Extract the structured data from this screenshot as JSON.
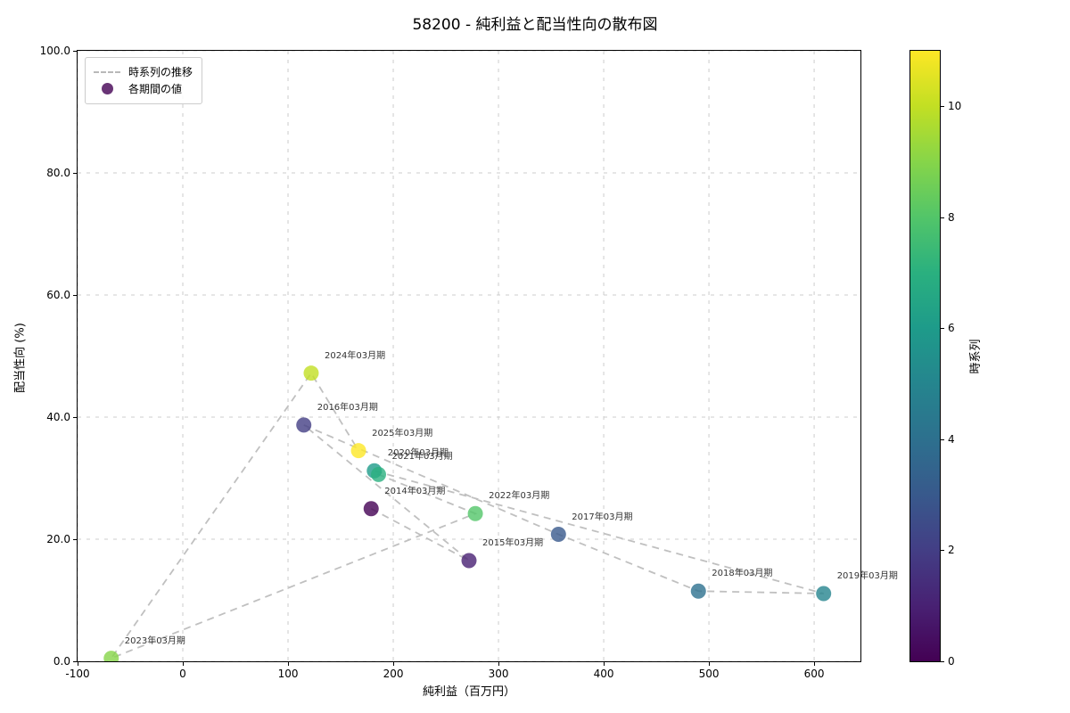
{
  "chart_data": {
    "type": "scatter",
    "title": "58200 - 純利益と配当性向の散布図",
    "xlabel": "純利益（百万円）",
    "ylabel": "配当性向 (%)",
    "xlim": [
      -100,
      644
    ],
    "ylim": [
      0,
      100
    ],
    "xticks": [
      -100,
      0,
      100,
      200,
      300,
      400,
      500,
      600
    ],
    "yticks": [
      0,
      20,
      40,
      60,
      80,
      100
    ],
    "ytick_labels": [
      "0.0",
      "20.0",
      "40.0",
      "60.0",
      "80.0",
      "100.0"
    ],
    "grid": true,
    "grid_color": "#cccccc",
    "line_color": "#c0c0c0",
    "marker_alpha": 0.8,
    "legend": {
      "position": "upper-left",
      "items": [
        {
          "type": "dashed-line",
          "label": "時系列の推移",
          "color": "#b9b9b9"
        },
        {
          "type": "dot",
          "label": "各期間の値",
          "color": "#440154"
        }
      ]
    },
    "points": [
      {
        "label": "2014年03月期",
        "x": 179,
        "y": 25.0,
        "t": 0,
        "color": "#440154"
      },
      {
        "label": "2015年03月期",
        "x": 272,
        "y": 16.5,
        "t": 1,
        "color": "#482173"
      },
      {
        "label": "2016年03月期",
        "x": 115,
        "y": 38.7,
        "t": 2,
        "color": "#433e85"
      },
      {
        "label": "2017年03月期",
        "x": 357,
        "y": 20.8,
        "t": 3,
        "color": "#38598c"
      },
      {
        "label": "2018年03月期",
        "x": 490,
        "y": 11.5,
        "t": 4,
        "color": "#2d708e"
      },
      {
        "label": "2019年03月期",
        "x": 609,
        "y": 11.1,
        "t": 5,
        "color": "#25858e"
      },
      {
        "label": "2020年03月期",
        "x": 182,
        "y": 31.2,
        "t": 6,
        "color": "#1e9b8a"
      },
      {
        "label": "2021年03月期",
        "x": 186,
        "y": 30.6,
        "t": 7,
        "color": "#2ab07f"
      },
      {
        "label": "2022年03月期",
        "x": 278,
        "y": 24.2,
        "t": 8,
        "color": "#52c569"
      },
      {
        "label": "2023年03月期",
        "x": -68,
        "y": 0.5,
        "t": 9,
        "color": "#86d549"
      },
      {
        "label": "2024年03月期",
        "x": 122,
        "y": 47.2,
        "t": 10,
        "color": "#c2df23"
      },
      {
        "label": "2025年03月期",
        "x": 167,
        "y": 34.5,
        "t": 11,
        "color": "#fde725"
      }
    ],
    "colorbar": {
      "label": "時系列",
      "min": 0,
      "max": 11,
      "ticks": [
        0,
        2,
        4,
        6,
        8,
        10
      ],
      "colors": [
        "#440154",
        "#482173",
        "#433e85",
        "#38598c",
        "#2d708e",
        "#25858e",
        "#1e9b8a",
        "#2ab07f",
        "#52c569",
        "#86d549",
        "#c2df23",
        "#fde725"
      ]
    }
  }
}
